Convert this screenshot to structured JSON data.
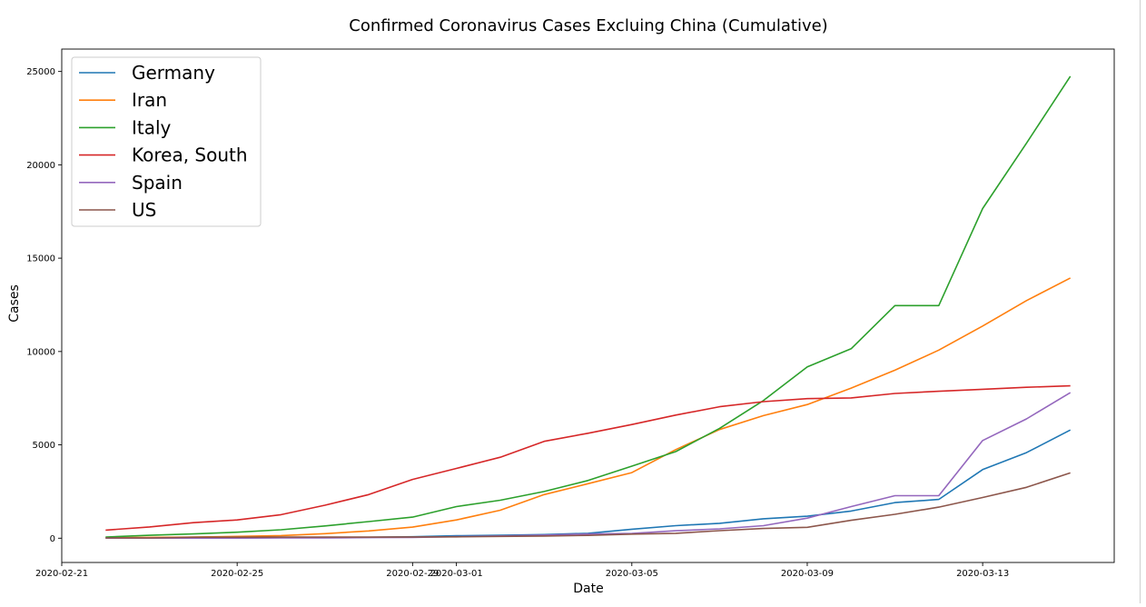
{
  "chart_data": {
    "type": "line",
    "title": "Confirmed Coronavirus Cases Excluing China (Cumulative)",
    "xlabel": "Date",
    "ylabel": "Cases",
    "x_ticks": [
      "2020-02-21",
      "2020-02-25",
      "2020-02-29",
      "2020-03-01",
      "2020-03-05",
      "2020-03-09",
      "2020-03-13"
    ],
    "y_ticks": [
      0,
      5000,
      10000,
      15000,
      20000,
      25000
    ],
    "xlim": [
      "2020-02-21",
      "2020-03-16"
    ],
    "ylim": [
      -1300,
      26200
    ],
    "grid": false,
    "legend_position": "top-left",
    "x": [
      "2020-02-22",
      "2020-02-23",
      "2020-02-24",
      "2020-02-25",
      "2020-02-26",
      "2020-02-27",
      "2020-02-28",
      "2020-02-29",
      "2020-03-01",
      "2020-03-02",
      "2020-03-03",
      "2020-03-04",
      "2020-03-05",
      "2020-03-06",
      "2020-03-07",
      "2020-03-08",
      "2020-03-09",
      "2020-03-10",
      "2020-03-11",
      "2020-03-12",
      "2020-03-13",
      "2020-03-14",
      "2020-03-15"
    ],
    "series": [
      {
        "name": "Germany",
        "color": "#1f77b4",
        "values": [
          16,
          16,
          16,
          16,
          27,
          46,
          48,
          79,
          130,
          159,
          196,
          262,
          482,
          670,
          799,
          1040,
          1176,
          1457,
          1908,
          2078,
          3675,
          4585,
          5795
        ]
      },
      {
        "name": "Iran",
        "color": "#ff7f0e",
        "values": [
          28,
          43,
          61,
          95,
          139,
          245,
          388,
          593,
          978,
          1501,
          2336,
          2922,
          3513,
          4747,
          5823,
          6566,
          7161,
          8042,
          9000,
          10075,
          11364,
          12729,
          13938
        ]
      },
      {
        "name": "Italy",
        "color": "#2ca02c",
        "values": [
          62,
          155,
          229,
          322,
          453,
          655,
          888,
          1128,
          1694,
          2036,
          2502,
          3089,
          3858,
          4636,
          5883,
          7375,
          9172,
          10149,
          12462,
          12462,
          17660,
          21157,
          24747
        ]
      },
      {
        "name": "Korea, South",
        "color": "#d62728",
        "values": [
          433,
          602,
          833,
          977,
          1261,
          1766,
          2337,
          3150,
          3736,
          4335,
          5186,
          5621,
          6088,
          6593,
          7041,
          7314,
          7478,
          7513,
          7755,
          7869,
          7979,
          8086,
          8162
        ]
      },
      {
        "name": "Spain",
        "color": "#9467bd",
        "values": [
          2,
          2,
          2,
          6,
          13,
          15,
          32,
          45,
          84,
          120,
          165,
          222,
          259,
          400,
          500,
          673,
          1073,
          1695,
          2277,
          2277,
          5232,
          6391,
          7798
        ]
      },
      {
        "name": "US",
        "color": "#8c564b",
        "values": [
          15,
          15,
          51,
          51,
          57,
          58,
          60,
          68,
          74,
          98,
          118,
          149,
          217,
          262,
          402,
          518,
          583,
          959,
          1281,
          1663,
          2179,
          2727,
          3499
        ]
      }
    ]
  }
}
